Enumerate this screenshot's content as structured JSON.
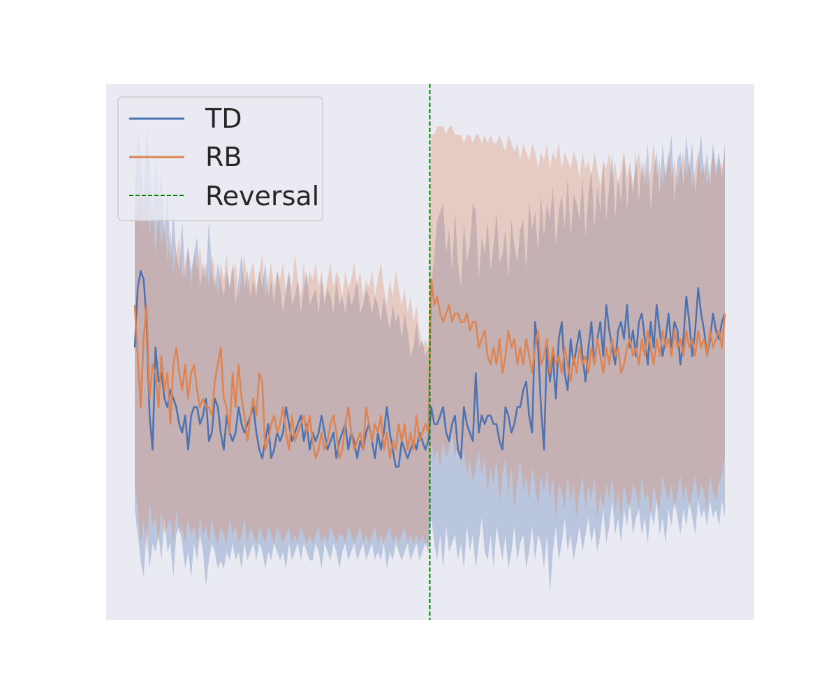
{
  "chart_data": {
    "type": "line",
    "title": "",
    "xlabel": "",
    "ylabel": "",
    "xlim": [
      0,
      200
    ],
    "ylim": [
      -4.5,
      1.8
    ],
    "grid": false,
    "legend_placement": "top-left",
    "background_color": "#eaeaf2",
    "reversal": {
      "label": "Reversal",
      "x": 100,
      "color": "#008000"
    },
    "series": [
      {
        "name": "TD",
        "color": "#4c72b0",
        "values": [
          -1.3,
          -0.6,
          -0.4,
          -0.5,
          -1.0,
          -2.1,
          -2.5,
          -1.3,
          -1.7,
          -1.6,
          -1.9,
          -2.0,
          -1.8,
          -1.9,
          -2.0,
          -2.2,
          -2.3,
          -2.1,
          -2.5,
          -2.1,
          -2.0,
          -2.0,
          -2.2,
          -2.1,
          -1.9,
          -2.4,
          -2.3,
          -1.9,
          -2.0,
          -2.3,
          -2.5,
          -2.1,
          -2.3,
          -2.4,
          -2.3,
          -2.0,
          -2.2,
          -2.3,
          -2.2,
          -2.1,
          -2.0,
          -2.3,
          -2.5,
          -2.6,
          -2.4,
          -2.2,
          -2.6,
          -2.5,
          -2.3,
          -2.4,
          -2.3,
          -2.0,
          -2.2,
          -2.4,
          -2.3,
          -2.2,
          -2.1,
          -2.4,
          -2.2,
          -2.5,
          -2.3,
          -2.4,
          -2.3,
          -2.1,
          -2.3,
          -2.5,
          -2.4,
          -2.3,
          -2.6,
          -2.4,
          -2.3,
          -2.2,
          -2.5,
          -2.3,
          -2.4,
          -2.6,
          -2.4,
          -2.5,
          -2.3,
          -2.2,
          -2.4,
          -2.6,
          -2.3,
          -2.5,
          -2.3,
          -2.0,
          -2.3,
          -2.5,
          -2.7,
          -2.7,
          -2.4,
          -2.5,
          -2.6,
          -2.5,
          -2.4,
          -2.5,
          -2.3,
          -2.4,
          -2.5,
          -2.4,
          -2.0,
          -2.2,
          -2.2,
          -2.1,
          -2.0,
          -2.3,
          -2.4,
          -2.2,
          -2.1,
          -2.5,
          -2.6,
          -2.0,
          -2.2,
          -2.3,
          -2.4,
          -1.6,
          -2.3,
          -2.1,
          -2.2,
          -2.1,
          -2.1,
          -2.2,
          -2.2,
          -2.4,
          -2.5,
          -2.0,
          -2.1,
          -2.3,
          -2.2,
          -2.0,
          -2.0,
          -1.8,
          -1.7,
          -2.1,
          -2.3,
          -1.0,
          -1.3,
          -2.0,
          -2.5,
          -1.3,
          -1.7,
          -1.4,
          -1.9,
          -1.2,
          -1.0,
          -1.6,
          -1.8,
          -1.2,
          -1.5,
          -1.3,
          -1.1,
          -1.4,
          -1.7,
          -1.3,
          -1.0,
          -1.5,
          -1.2,
          -1.0,
          -1.4,
          -0.8,
          -1.1,
          -1.3,
          -1.5,
          -1.1,
          -1.0,
          -1.2,
          -0.8,
          -1.3,
          -1.1,
          -1.4,
          -1.0,
          -0.9,
          -1.2,
          -1.5,
          -1.0,
          -1.3,
          -0.8,
          -1.1,
          -1.4,
          -1.2,
          -0.9,
          -1.3,
          -1.0,
          -1.1,
          -1.5,
          -1.2,
          -0.7,
          -1.0,
          -1.4,
          -1.1,
          -0.6,
          -0.9,
          -1.1,
          -1.4,
          -1.2,
          -0.9,
          -1.1,
          -1.2,
          -1.0,
          -0.9
        ],
        "ci_lower": [
          -3.2,
          -3.5,
          -3.8,
          -4.0,
          -3.4,
          -3.9,
          -3.6,
          -3.7,
          -3.5,
          -3.8,
          -3.3,
          -3.7,
          -3.6,
          -4.0,
          -3.5,
          -3.4,
          -3.6,
          -3.9,
          -3.7,
          -4.0,
          -3.6,
          -3.8,
          -3.5,
          -3.7,
          -4.1,
          -3.8,
          -3.6,
          -3.7,
          -3.9,
          -3.8,
          -3.9,
          -3.7,
          -3.8,
          -3.6,
          -3.8,
          -3.7,
          -3.9,
          -3.6,
          -3.8,
          -3.7,
          -3.6,
          -3.8,
          -3.6,
          -3.7,
          -3.9,
          -3.7,
          -3.8,
          -3.6,
          -3.7,
          -3.8,
          -3.7,
          -3.9,
          -3.6,
          -3.8,
          -3.7,
          -3.6,
          -3.8,
          -3.6,
          -3.7,
          -3.8,
          -3.8,
          -3.6,
          -3.7,
          -3.9,
          -3.6,
          -3.7,
          -3.8,
          -3.6,
          -3.7,
          -3.9,
          -3.7,
          -3.6,
          -3.8,
          -3.7,
          -3.6,
          -3.8,
          -3.7,
          -3.6,
          -3.8,
          -3.7,
          -3.6,
          -3.8,
          -3.7,
          -3.8,
          -3.6,
          -3.9,
          -3.7,
          -3.8,
          -3.6,
          -3.7,
          -3.8,
          -3.7,
          -3.6,
          -3.8,
          -3.7,
          -3.6,
          -3.8,
          -3.7,
          -3.6,
          -3.7,
          -3.3,
          -3.6,
          -3.8,
          -3.5,
          -3.9,
          -3.4,
          -3.7,
          -3.6,
          -3.5,
          -3.8,
          -3.6,
          -3.9,
          -3.4,
          -3.7,
          -3.5,
          -3.9,
          -3.6,
          -3.3,
          -3.7,
          -3.8,
          -3.5,
          -3.9,
          -3.4,
          -3.6,
          -3.8,
          -3.5,
          -3.9,
          -3.7,
          -3.4,
          -3.8,
          -3.6,
          -3.5,
          -3.9,
          -3.7,
          -3.4,
          -3.8,
          -3.5,
          -3.6,
          -3.9,
          -3.5,
          -4.2,
          -3.7,
          -3.4,
          -3.8,
          -3.6,
          -3.3,
          -3.7,
          -3.5,
          -3.8,
          -3.6,
          -3.4,
          -3.7,
          -3.5,
          -3.3,
          -3.6,
          -3.4,
          -3.7,
          -3.5,
          -3.2,
          -3.6,
          -3.4,
          -3.1,
          -3.5,
          -3.3,
          -3.6,
          -3.2,
          -3.4,
          -3.1,
          -3.5,
          -3.3,
          -3.2,
          -3.5,
          -3.3,
          -3.6,
          -3.2,
          -3.4,
          -3.1,
          -3.5,
          -3.3,
          -3.6,
          -3.2,
          -3.4,
          -3.1,
          -3.3,
          -3.5,
          -3.2,
          -3.4,
          -3.1,
          -3.3,
          -3.5,
          -3.1,
          -3.3,
          -3.2,
          -3.4,
          -3.1,
          -3.3,
          -3.2,
          -3.4,
          -3.1,
          -3.3
        ],
        "ci_upper": [
          0.6,
          1.2,
          1.0,
          0.5,
          1.3,
          0.9,
          0.2,
          1.0,
          0.4,
          0.8,
          0.0,
          0.6,
          -0.3,
          0.3,
          -0.2,
          -0.4,
          0.2,
          -0.5,
          -0.1,
          -0.4,
          -0.2,
          0.0,
          -0.6,
          -0.3,
          -0.5,
          0.2,
          -0.4,
          -0.6,
          -0.3,
          -0.5,
          -0.7,
          -0.4,
          -0.6,
          -0.3,
          -0.8,
          -0.5,
          -0.2,
          -0.6,
          -0.4,
          -0.7,
          -0.5,
          -0.7,
          -0.4,
          -0.6,
          -0.3,
          -0.7,
          -0.5,
          -0.8,
          -0.4,
          -0.6,
          -0.9,
          -0.6,
          -0.4,
          -0.8,
          -0.7,
          -0.5,
          -0.9,
          -0.6,
          -0.4,
          -0.8,
          -0.7,
          -0.6,
          -0.9,
          -0.5,
          -0.8,
          -0.6,
          -0.7,
          -0.9,
          -0.5,
          -0.8,
          -0.7,
          -0.9,
          -0.6,
          -0.8,
          -0.7,
          -0.5,
          -0.9,
          -0.8,
          -0.6,
          -0.7,
          -0.9,
          -0.7,
          -0.8,
          -1.0,
          -0.7,
          -0.9,
          -1.1,
          -0.8,
          -1.0,
          -0.9,
          -1.2,
          -0.9,
          -1.1,
          -1.4,
          -1.3,
          -1.0,
          -1.3,
          -1.2,
          -1.4,
          -1.3,
          -0.6,
          -0.2,
          0.2,
          0.3,
          0.4,
          -0.2,
          0.1,
          -0.4,
          0.3,
          -0.3,
          -0.6,
          0.2,
          -0.3,
          -0.1,
          0.4,
          0.3,
          -0.5,
          0.0,
          -0.2,
          0.2,
          -0.4,
          -0.1,
          0.3,
          -0.3,
          -0.2,
          0.1,
          -0.5,
          0.2,
          -0.1,
          -0.3,
          0.1,
          0.2,
          -0.4,
          0.4,
          0.1,
          0.3,
          -0.2,
          0.5,
          0.0,
          0.4,
          0.2,
          0.6,
          -0.1,
          0.3,
          0.5,
          0.1,
          0.7,
          0.0,
          0.5,
          0.4,
          0.2,
          0.7,
          0.0,
          0.5,
          0.8,
          0.1,
          0.6,
          0.3,
          0.9,
          0.2,
          0.6,
          1.0,
          0.2,
          0.7,
          0.4,
          1.0,
          0.3,
          0.8,
          0.5,
          1.0,
          0.4,
          0.9,
          0.6,
          1.1,
          0.3,
          0.8,
          1.0,
          0.5,
          1.1,
          0.7,
          0.9,
          1.2,
          0.4,
          0.9,
          1.0,
          0.6,
          1.2,
          0.8,
          1.1,
          0.5,
          0.9,
          1.2,
          0.7,
          1.0,
          0.6,
          1.1,
          0.8,
          1.0,
          0.7,
          1.1
        ]
      },
      {
        "name": "RB",
        "color": "#dd8452",
        "values": [
          -0.8,
          -1.4,
          -2.0,
          -1.2,
          -0.8,
          -1.9,
          -1.5,
          -1.6,
          -2.0,
          -1.4,
          -1.8,
          -1.6,
          -2.2,
          -1.5,
          -1.3,
          -1.6,
          -1.8,
          -1.5,
          -1.9,
          -1.6,
          -1.5,
          -1.8,
          -2.0,
          -1.9,
          -2.0,
          -2.0,
          -2.1,
          -1.7,
          -1.5,
          -1.3,
          -1.9,
          -2.0,
          -2.3,
          -1.6,
          -2.0,
          -1.5,
          -1.9,
          -2.1,
          -2.4,
          -2.1,
          -1.9,
          -2.1,
          -1.6,
          -1.7,
          -2.5,
          -2.4,
          -2.2,
          -2.1,
          -2.3,
          -2.2,
          -2.0,
          -2.3,
          -2.5,
          -2.1,
          -2.4,
          -2.3,
          -2.2,
          -2.1,
          -2.3,
          -2.1,
          -2.4,
          -2.6,
          -2.5,
          -2.3,
          -2.5,
          -2.4,
          -2.2,
          -2.1,
          -2.3,
          -2.6,
          -2.5,
          -2.2,
          -2.0,
          -2.3,
          -2.5,
          -2.4,
          -2.3,
          -2.5,
          -2.0,
          -2.2,
          -2.4,
          -2.2,
          -2.3,
          -2.1,
          -2.5,
          -2.3,
          -2.6,
          -2.4,
          -2.5,
          -2.2,
          -2.4,
          -2.2,
          -2.5,
          -2.3,
          -2.5,
          -2.1,
          -2.4,
          -2.3,
          -2.2,
          -2.3,
          -0.5,
          -0.8,
          -0.7,
          -0.9,
          -1.0,
          -0.9,
          -0.8,
          -1.0,
          -0.9,
          -0.9,
          -1.0,
          -1.0,
          -0.9,
          -1.1,
          -1.0,
          -1.0,
          -1.3,
          -1.2,
          -1.1,
          -1.4,
          -1.5,
          -1.3,
          -1.5,
          -1.2,
          -1.6,
          -1.4,
          -1.1,
          -1.3,
          -1.2,
          -1.5,
          -1.3,
          -1.5,
          -1.2,
          -1.4,
          -1.6,
          -1.3,
          -1.1,
          -1.5,
          -1.4,
          -1.2,
          -1.6,
          -1.3,
          -1.5,
          -1.4,
          -1.6,
          -1.3,
          -1.5,
          -1.7,
          -1.4,
          -1.6,
          -1.3,
          -1.5,
          -1.4,
          -1.6,
          -1.3,
          -1.5,
          -1.2,
          -1.4,
          -1.6,
          -1.3,
          -1.5,
          -1.2,
          -1.4,
          -1.3,
          -1.6,
          -1.5,
          -1.3,
          -1.2,
          -1.4,
          -1.3,
          -1.5,
          -1.2,
          -1.4,
          -1.1,
          -1.3,
          -1.5,
          -1.2,
          -1.4,
          -1.1,
          -1.3,
          -1.2,
          -1.4,
          -1.1,
          -1.3,
          -1.2,
          -1.4,
          -1.1,
          -1.3,
          -1.2,
          -1.4,
          -1.1,
          -1.3,
          -1.2,
          -1.4,
          -1.1,
          -1.3,
          -1.2,
          -1.1,
          -1.3,
          -0.9
        ],
        "ci_lower": [
          -2.9,
          -3.2,
          -3.6,
          -3.3,
          -3.7,
          -3.1,
          -3.4,
          -3.3,
          -3.6,
          -3.2,
          -3.5,
          -3.4,
          -3.3,
          -3.6,
          -3.2,
          -3.5,
          -3.4,
          -3.6,
          -3.3,
          -3.5,
          -3.4,
          -3.6,
          -3.3,
          -3.5,
          -3.4,
          -3.6,
          -3.3,
          -3.5,
          -3.6,
          -3.4,
          -3.5,
          -3.6,
          -3.3,
          -3.5,
          -3.4,
          -3.6,
          -3.5,
          -3.3,
          -3.6,
          -3.4,
          -3.5,
          -3.6,
          -3.4,
          -3.5,
          -3.6,
          -3.4,
          -3.5,
          -3.6,
          -3.4,
          -3.5,
          -3.6,
          -3.5,
          -3.4,
          -3.6,
          -3.5,
          -3.6,
          -3.4,
          -3.5,
          -3.6,
          -3.5,
          -3.6,
          -3.5,
          -3.4,
          -3.6,
          -3.5,
          -3.6,
          -3.4,
          -3.5,
          -3.6,
          -3.5,
          -3.5,
          -3.6,
          -3.4,
          -3.5,
          -3.6,
          -3.5,
          -3.4,
          -3.6,
          -3.5,
          -3.6,
          -3.5,
          -3.4,
          -3.6,
          -3.5,
          -3.6,
          -3.5,
          -3.4,
          -3.6,
          -3.5,
          -3.6,
          -3.5,
          -3.4,
          -3.6,
          -3.5,
          -3.6,
          -3.5,
          -3.6,
          -3.5,
          -3.6,
          -3.6,
          -2.4,
          -2.6,
          -2.5,
          -2.7,
          -2.4,
          -2.6,
          -2.5,
          -2.3,
          -2.6,
          -2.4,
          -2.7,
          -2.5,
          -2.8,
          -2.6,
          -2.9,
          -2.7,
          -2.5,
          -2.8,
          -2.6,
          -3.0,
          -2.7,
          -2.9,
          -2.6,
          -3.1,
          -2.8,
          -2.6,
          -3.0,
          -2.7,
          -3.2,
          -2.9,
          -2.6,
          -3.0,
          -2.8,
          -3.1,
          -2.7,
          -2.9,
          -3.2,
          -2.8,
          -3.0,
          -2.7,
          -3.1,
          -2.8,
          -3.3,
          -2.9,
          -3.0,
          -3.2,
          -2.8,
          -3.1,
          -2.9,
          -3.3,
          -3.0,
          -2.8,
          -3.2,
          -2.9,
          -3.1,
          -2.8,
          -3.3,
          -3.0,
          -3.2,
          -2.9,
          -3.1,
          -2.8,
          -3.2,
          -3.0,
          -3.3,
          -2.9,
          -3.1,
          -3.2,
          -2.9,
          -3.0,
          -3.2,
          -2.8,
          -3.1,
          -3.0,
          -3.3,
          -2.9,
          -3.1,
          -3.2,
          -2.8,
          -3.0,
          -3.1,
          -2.9,
          -3.2,
          -3.0,
          -2.8,
          -3.1,
          -2.9,
          -3.2,
          -3.0,
          -2.8,
          -3.1,
          -2.9,
          -3.0,
          -3.2,
          -2.8,
          -3.0,
          -3.1,
          -2.9,
          -2.8,
          -2.6
        ],
        "ci_upper": [
          0.5,
          0.3,
          0.7,
          0.1,
          0.6,
          0.0,
          0.4,
          -0.2,
          0.3,
          -0.1,
          0.2,
          -0.3,
          0.1,
          -0.4,
          -0.2,
          0.0,
          -0.5,
          -0.3,
          -0.1,
          -0.6,
          -0.2,
          -0.4,
          -0.1,
          -0.5,
          -0.3,
          -0.6,
          -0.2,
          -0.4,
          -0.7,
          -0.3,
          -0.5,
          -0.2,
          -0.6,
          -0.4,
          -0.3,
          -0.7,
          -0.5,
          -0.2,
          -0.6,
          -0.4,
          -0.3,
          -0.6,
          -0.4,
          -0.2,
          -0.7,
          -0.5,
          -0.3,
          -0.6,
          -0.4,
          -0.5,
          -0.3,
          -0.7,
          -0.4,
          -0.6,
          -0.2,
          -0.5,
          -0.7,
          -0.3,
          -0.6,
          -0.4,
          -0.5,
          -0.3,
          -0.6,
          -0.4,
          -0.7,
          -0.5,
          -0.3,
          -0.6,
          -0.4,
          -0.5,
          -0.7,
          -0.4,
          -0.6,
          -0.5,
          -0.3,
          -0.6,
          -0.4,
          -0.7,
          -0.5,
          -0.6,
          -0.4,
          -0.7,
          -0.5,
          -0.3,
          -0.6,
          -0.8,
          -0.5,
          -0.7,
          -0.4,
          -0.6,
          -0.8,
          -0.6,
          -0.9,
          -0.7,
          -1.0,
          -0.8,
          -1.1,
          -1.3,
          -1.2,
          -1.3,
          1.2,
          1.2,
          1.3,
          1.3,
          1.3,
          1.2,
          1.3,
          1.3,
          1.2,
          1.2,
          1.2,
          1.1,
          1.2,
          1.2,
          1.1,
          1.2,
          1.2,
          1.1,
          1.2,
          1.1,
          1.2,
          1.1,
          1.1,
          1.2,
          1.1,
          1.0,
          1.2,
          1.1,
          1.0,
          1.1,
          0.9,
          1.1,
          1.0,
          0.9,
          1.1,
          1.0,
          0.8,
          1.0,
          0.9,
          1.1,
          0.8,
          1.0,
          0.9,
          1.1,
          0.8,
          1.0,
          0.9,
          0.8,
          1.0,
          0.9,
          0.7,
          1.0,
          0.8,
          0.9,
          0.7,
          1.0,
          0.8,
          0.6,
          0.9,
          0.8,
          1.0,
          0.7,
          0.9,
          0.6,
          0.8,
          1.0,
          0.7,
          0.9,
          0.6,
          0.8,
          1.0,
          0.7,
          0.9,
          0.6,
          0.8,
          1.1,
          0.7,
          0.9,
          0.6,
          0.8,
          1.0,
          0.7,
          0.9,
          0.6,
          0.8,
          1.0,
          0.7,
          0.9,
          0.6,
          0.8,
          1.0,
          0.7,
          0.9,
          0.6,
          0.8,
          1.0,
          0.7,
          0.9,
          0.8,
          1.0
        ]
      }
    ]
  }
}
